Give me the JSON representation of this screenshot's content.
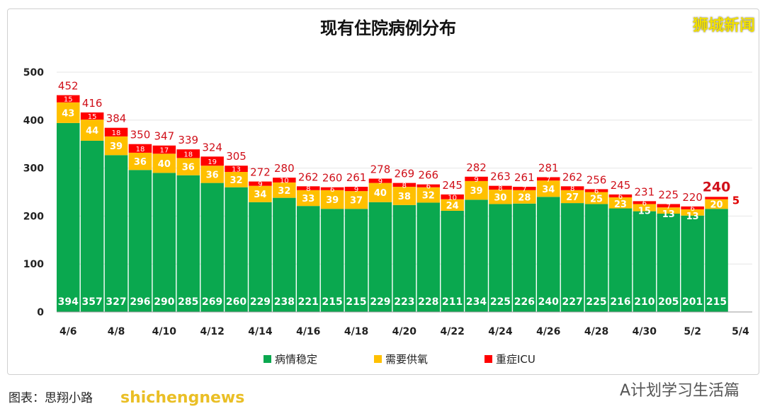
{
  "brand": "狮城新闻",
  "credit": "图表：思翔小路",
  "site": "shichengnews",
  "wechat": "A计划学习生活篇",
  "chart_data": {
    "type": "bar",
    "stacked": true,
    "title": "现有住院病例分布",
    "categories": [
      "4/6",
      "4/7",
      "4/8",
      "4/9",
      "4/10",
      "4/11",
      "4/12",
      "4/13",
      "4/14",
      "4/15",
      "4/16",
      "4/17",
      "4/18",
      "4/19",
      "4/20",
      "4/21",
      "4/22",
      "4/23",
      "4/24",
      "4/25",
      "4/26",
      "4/27",
      "4/28",
      "4/29",
      "4/30",
      "5/1",
      "5/2",
      "5/3"
    ],
    "x_tick_labels": [
      "4/6",
      "4/8",
      "4/10",
      "4/12",
      "4/14",
      "4/16",
      "4/18",
      "4/20",
      "4/22",
      "4/24",
      "4/26",
      "4/28",
      "4/30",
      "5/2",
      "5/4"
    ],
    "yticks": [
      0,
      100,
      200,
      300,
      400,
      500
    ],
    "ylim": [
      0,
      500
    ],
    "grid": true,
    "legend_position": "bottom",
    "series": [
      {
        "name": "病情稳定",
        "color": "#0aa84f",
        "values": [
          394,
          357,
          327,
          296,
          290,
          285,
          269,
          260,
          229,
          238,
          221,
          215,
          215,
          229,
          223,
          228,
          211,
          234,
          225,
          226,
          240,
          227,
          225,
          216,
          210,
          205,
          201,
          215
        ]
      },
      {
        "name": "需要供氧",
        "color": "#ffc000",
        "values": [
          43,
          44,
          39,
          36,
          40,
          36,
          36,
          32,
          34,
          32,
          33,
          39,
          37,
          40,
          38,
          32,
          24,
          39,
          30,
          28,
          34,
          27,
          25,
          23,
          15,
          13,
          13,
          20
        ]
      },
      {
        "name": "重症ICU",
        "color": "#ff0000",
        "values": [
          15,
          15,
          18,
          18,
          17,
          18,
          19,
          13,
          9,
          10,
          8,
          6,
          9,
          9,
          8,
          6,
          10,
          9,
          8,
          7,
          7,
          8,
          6,
          6,
          6,
          7,
          6,
          5
        ]
      }
    ],
    "totals": [
      452,
      416,
      384,
      350,
      347,
      339,
      324,
      305,
      272,
      280,
      262,
      260,
      261,
      278,
      269,
      266,
      245,
      282,
      263,
      261,
      281,
      262,
      256,
      245,
      231,
      225,
      220,
      240
    ]
  }
}
